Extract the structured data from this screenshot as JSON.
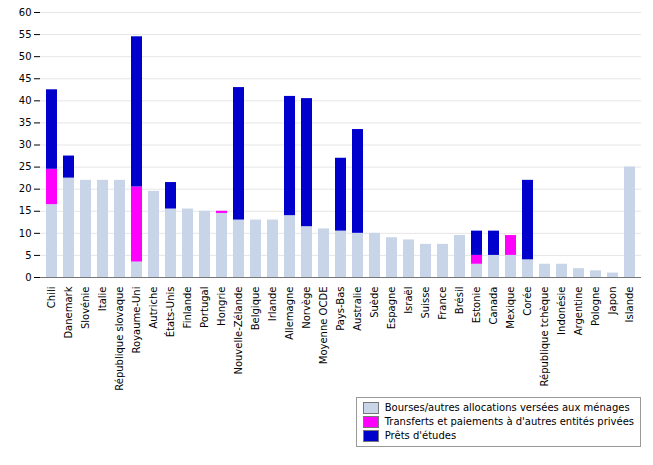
{
  "chart_data": {
    "type": "bar",
    "stacked": true,
    "categories": [
      "Chili",
      "Danemark",
      "Slovénie",
      "Italie",
      "République slovaque",
      "Royaume-Uni",
      "Autriche",
      "États-Unis",
      "Finlande",
      "Portugal",
      "Hongrie",
      "Nouvelle-Zélande",
      "Belgique",
      "Irlande",
      "Allemagne",
      "Norvège",
      "Moyenne OCDE",
      "Pays-Bas",
      "Australie",
      "Suède",
      "Espagne",
      "Israël",
      "Suisse",
      "France",
      "Brésil",
      "Estonie",
      "Canada",
      "Mexique",
      "Corée",
      "République tchèque",
      "Indonésie",
      "Argentine",
      "Pologne",
      "Japon",
      "Islande"
    ],
    "series": [
      {
        "name": "Bourses/autres allocations versées aux ménages",
        "color": "#c8d4e8",
        "values": [
          16.5,
          22.5,
          22.0,
          22.0,
          22.0,
          3.5,
          19.5,
          15.5,
          15.5,
          15.0,
          14.5,
          13.0,
          13.0,
          13.0,
          14.0,
          11.5,
          11.0,
          10.5,
          10.0,
          10.0,
          9.0,
          8.5,
          7.5,
          7.5,
          9.5,
          3.0,
          5.0,
          5.0,
          4.0,
          3.0,
          3.0,
          2.0,
          1.5,
          1.0,
          25.0
        ]
      },
      {
        "name": "Transferts et paiements à d'autres entités privées",
        "color": "#ff00ff",
        "values": [
          8.0,
          0.0,
          0.0,
          0.0,
          0.0,
          17.0,
          0.0,
          0.0,
          0.0,
          0.0,
          0.5,
          0.0,
          0.0,
          0.0,
          0.0,
          0.0,
          0.0,
          0.0,
          0.0,
          0.0,
          0.0,
          0.0,
          0.0,
          0.0,
          0.0,
          2.0,
          0.0,
          4.5,
          0.0,
          0.0,
          0.0,
          0.0,
          0.0,
          0.0,
          0.0
        ]
      },
      {
        "name": "Prêts d'études",
        "color": "#0000cd",
        "values": [
          18.0,
          5.0,
          0.0,
          0.0,
          0.0,
          34.0,
          0.0,
          6.0,
          0.0,
          0.0,
          0.0,
          30.0,
          0.0,
          0.0,
          27.0,
          29.0,
          0.0,
          16.5,
          23.5,
          0.0,
          0.0,
          0.0,
          0.0,
          0.0,
          0.0,
          5.5,
          5.5,
          0.0,
          18.0,
          0.0,
          0.0,
          0.0,
          0.0,
          0.0,
          0.0
        ]
      }
    ],
    "ylim": [
      0,
      60
    ],
    "yticks": [
      0,
      5,
      10,
      15,
      20,
      25,
      30,
      35,
      40,
      45,
      50,
      55,
      60
    ],
    "grid": true,
    "legend": "lower right"
  }
}
